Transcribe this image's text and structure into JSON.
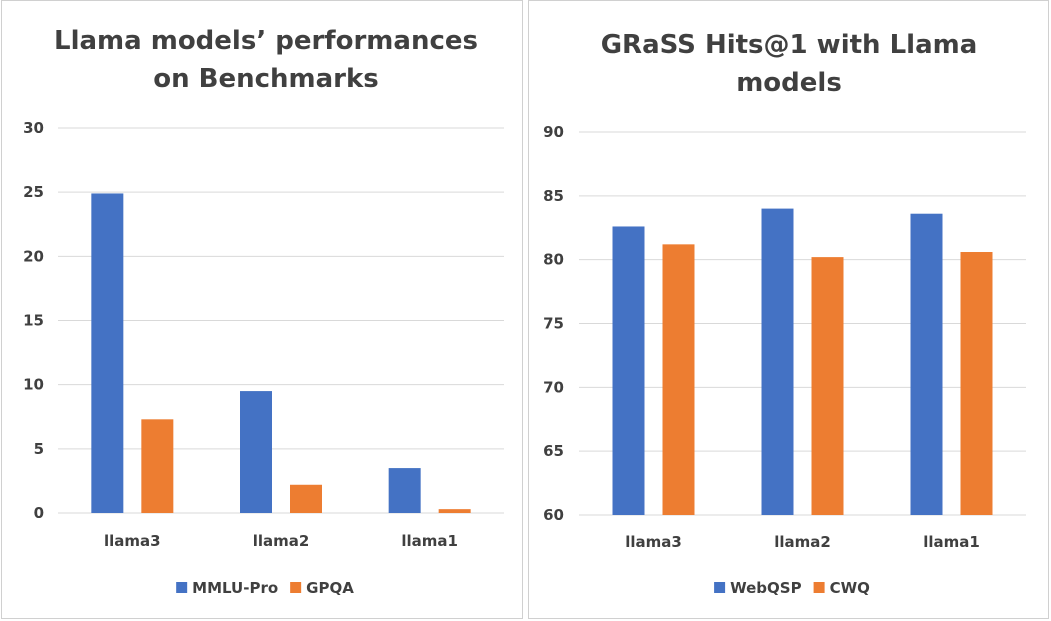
{
  "chart_data": [
    {
      "type": "bar",
      "title_lines": [
        "Llama models’ performances",
        "on Benchmarks"
      ],
      "categories": [
        "llama3",
        "llama2",
        "llama1"
      ],
      "series": [
        {
          "name": "MMLU-Pro",
          "values": [
            24.9,
            9.5,
            3.5
          ],
          "color": "#4472C4"
        },
        {
          "name": "GPQA",
          "values": [
            7.3,
            2.2,
            0.3
          ],
          "color": "#ED7D31"
        }
      ],
      "ylim": [
        0,
        30
      ],
      "yticks": [
        "0",
        "5",
        "10",
        "15",
        "20",
        "25",
        "30"
      ],
      "grid": true,
      "legend": "bottom"
    },
    {
      "type": "bar",
      "title_lines": [
        "GRaSS Hits@1 with Llama",
        "models"
      ],
      "categories": [
        "llama3",
        "llama2",
        "llama1"
      ],
      "series": [
        {
          "name": "WebQSP",
          "values": [
            82.6,
            84.0,
            83.6
          ],
          "color": "#4472C4"
        },
        {
          "name": "CWQ",
          "values": [
            81.2,
            80.2,
            80.6
          ],
          "color": "#ED7D31"
        }
      ],
      "ylim": [
        60,
        90
      ],
      "yticks": [
        "60",
        "65",
        "70",
        "75",
        "80",
        "85",
        "90"
      ],
      "grid": true,
      "legend": "bottom"
    }
  ]
}
